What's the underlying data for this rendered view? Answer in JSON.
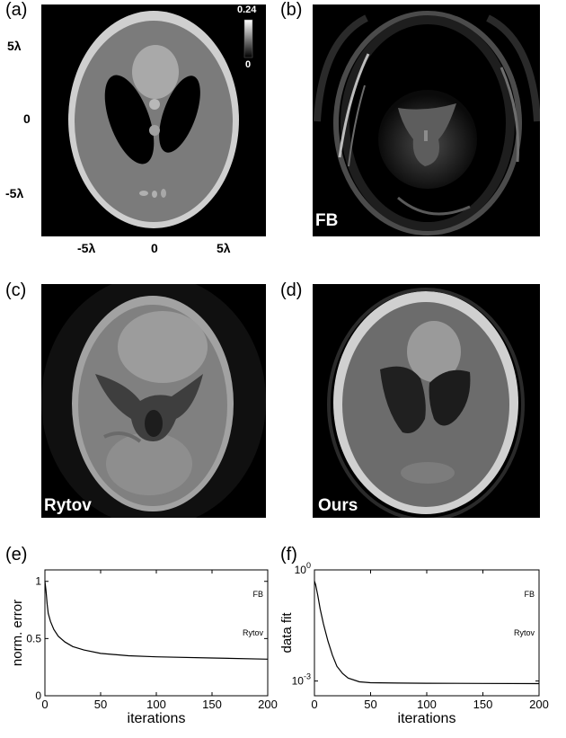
{
  "panels": {
    "a": {
      "letter": "(a)",
      "colorbar": {
        "max": "0.24",
        "min": "0"
      },
      "y_ticks": [
        "5λ",
        "0",
        "-5λ"
      ],
      "x_ticks": [
        "-5λ",
        "0",
        "5λ"
      ]
    },
    "b": {
      "letter": "(b)",
      "tag": "FB"
    },
    "c": {
      "letter": "(c)",
      "tag": "Rytov"
    },
    "d": {
      "letter": "(d)",
      "tag": "Ours"
    },
    "e": {
      "letter": "(e)"
    },
    "f": {
      "letter": "(f)"
    }
  },
  "chart_data": [
    {
      "type": "line",
      "panel": "e",
      "xlabel": "iterations",
      "ylabel": "norm. error",
      "xlim": [
        0,
        200
      ],
      "ylim": [
        0,
        1.1
      ],
      "x_ticks": [
        "0",
        "50",
        "100",
        "150",
        "200"
      ],
      "y_ticks": [
        "0",
        "0.5",
        "1"
      ],
      "annotations": [
        "FB",
        "Rytov"
      ],
      "series": [
        {
          "x": [
            0,
            1,
            2,
            3,
            5,
            8,
            12,
            18,
            25,
            35,
            50,
            75,
            100,
            150,
            200
          ],
          "y": [
            1.0,
            0.92,
            0.8,
            0.72,
            0.65,
            0.58,
            0.52,
            0.47,
            0.43,
            0.4,
            0.37,
            0.35,
            0.34,
            0.33,
            0.32
          ]
        }
      ]
    },
    {
      "type": "line",
      "panel": "f",
      "xlabel": "iterations",
      "ylabel": "data fit",
      "xlim": [
        0,
        200
      ],
      "ylim": [
        0.0004,
        1
      ],
      "yscale": "log",
      "x_ticks": [
        "0",
        "50",
        "100",
        "150",
        "200"
      ],
      "y_ticks": [
        {
          "base": "10",
          "exp": "0",
          "value": 1
        },
        {
          "base": "10",
          "exp": "-3",
          "value": 0.001
        }
      ],
      "annotations": [
        "FB",
        "Rytov"
      ],
      "series": [
        {
          "x": [
            0,
            1,
            3,
            5,
            8,
            12,
            16,
            20,
            25,
            30,
            40,
            50,
            75,
            100,
            150,
            200
          ],
          "y": [
            0.5,
            0.4,
            0.2,
            0.09,
            0.035,
            0.012,
            0.005,
            0.0025,
            0.0016,
            0.0012,
            0.00095,
            0.0009,
            0.00088,
            0.00087,
            0.00086,
            0.00085
          ]
        }
      ]
    }
  ]
}
